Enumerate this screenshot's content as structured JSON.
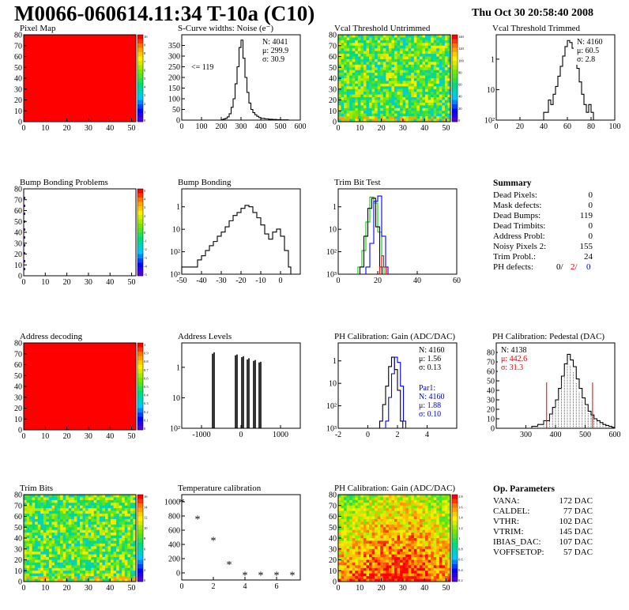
{
  "header": {
    "title": "M0066-060614.11:34 T-10a (C10)",
    "date": "Thu Oct 30 20:58:40 2008"
  },
  "chart_data": [
    {
      "id": "pixel-map",
      "type": "heatmap",
      "title": "Pixel Map",
      "xlim": [
        0,
        52
      ],
      "ylim": [
        0,
        80
      ],
      "xticks": [
        "0",
        "10",
        "20",
        "30",
        "40",
        "50"
      ],
      "yticks": [
        "0",
        "10",
        "20",
        "30",
        "40",
        "50",
        "60",
        "70",
        "80"
      ],
      "fill": "uniform",
      "fill_color": "#ff0000",
      "zmax": 10,
      "palette_ticks": [
        "10",
        "9",
        "8",
        "7",
        "6",
        "5",
        "4",
        "3",
        "2",
        "1",
        "0"
      ]
    },
    {
      "id": "scurve-noise",
      "type": "line",
      "title": "S-Curve widths: Noise (e⁻)",
      "xlim": [
        0,
        600
      ],
      "ylim": [
        0,
        400
      ],
      "xticks": [
        "0",
        "100",
        "200",
        "300",
        "400",
        "500",
        "600"
      ],
      "yticks": [
        "0",
        "50",
        "100",
        "150",
        "200",
        "250",
        "300",
        "350"
      ],
      "stats": {
        "N": "N: 4041",
        "mean": "μ: 299.9",
        "sigma": "σ: 30.9"
      },
      "annotation": "<= 119",
      "x": [
        200,
        210,
        220,
        230,
        240,
        250,
        260,
        270,
        280,
        290,
        300,
        310,
        320,
        330,
        340,
        350,
        360,
        370,
        380,
        390,
        400,
        420,
        440,
        460,
        480,
        500,
        520,
        540
      ],
      "values": [
        2,
        5,
        8,
        15,
        30,
        60,
        100,
        170,
        250,
        340,
        375,
        290,
        200,
        130,
        80,
        50,
        35,
        25,
        18,
        12,
        8,
        6,
        4,
        3,
        2,
        1,
        1,
        0
      ]
    },
    {
      "id": "vcal-untrimmed",
      "type": "heatmap",
      "title": "Vcal Threshold Untrimmed",
      "xlim": [
        0,
        52
      ],
      "ylim": [
        0,
        80
      ],
      "xticks": [
        "0",
        "10",
        "20",
        "30",
        "40",
        "50"
      ],
      "yticks": [
        "0",
        "10",
        "20",
        "30",
        "40",
        "50",
        "60",
        "70",
        "80"
      ],
      "fill": "noise",
      "palette_ticks": [
        "140",
        "120",
        "100",
        "80",
        "60",
        "40",
        "20",
        "0"
      ]
    },
    {
      "id": "vcal-trimmed",
      "type": "line",
      "title": "Vcal Threshold Trimmed",
      "xlim": [
        0,
        100
      ],
      "ylim": [
        0.5,
        1000
      ],
      "yscale": "log",
      "xticks": [
        "0",
        "20",
        "40",
        "60",
        "80",
        "100"
      ],
      "yticks": [
        "10²",
        "10",
        "1"
      ],
      "stats": {
        "N": "N: 4160",
        "mean": "μ: 60.5",
        "sigma": "σ:  2.8"
      },
      "x": [
        40,
        42,
        44,
        46,
        48,
        50,
        52,
        54,
        56,
        58,
        60,
        62,
        64,
        66,
        68,
        70,
        72,
        74,
        76,
        78,
        80
      ],
      "values": [
        1,
        1,
        3,
        2,
        5,
        10,
        25,
        60,
        150,
        350,
        600,
        500,
        300,
        120,
        50,
        15,
        5,
        2,
        1,
        2,
        1
      ]
    },
    {
      "id": "bump-map",
      "type": "heatmap",
      "title": "Bump Bonding Problems",
      "xlim": [
        0,
        52
      ],
      "ylim": [
        0,
        80
      ],
      "xticks": [
        "0",
        "10",
        "20",
        "30",
        "40",
        "50"
      ],
      "yticks": [
        "0",
        "10",
        "20",
        "30",
        "40",
        "50",
        "60",
        "70",
        "80"
      ],
      "fill": "empty",
      "palette_ticks": [
        "5",
        "4",
        "3",
        "2",
        "1",
        "0",
        "-1",
        "-2",
        "-3",
        "-4",
        "-5"
      ]
    },
    {
      "id": "bump-bonding",
      "type": "line",
      "title": "Bump Bonding",
      "xlim": [
        -50,
        10
      ],
      "ylim": [
        0.5,
        2000
      ],
      "yscale": "log",
      "xticks": [
        "-50",
        "-40",
        "-30",
        "-20",
        "-10",
        "0"
      ],
      "yticks": [
        "10³",
        "10²",
        "10",
        "1"
      ],
      "x": [
        -50,
        -45,
        -42,
        -40,
        -38,
        -36,
        -34,
        -32,
        -30,
        -28,
        -26,
        -24,
        -22,
        -20,
        -18,
        -16,
        -14,
        -12,
        -10,
        -8,
        -6,
        -4,
        -2,
        0,
        2,
        4
      ],
      "values": [
        1,
        1,
        2,
        3,
        5,
        8,
        12,
        20,
        30,
        50,
        90,
        150,
        200,
        300,
        400,
        350,
        200,
        120,
        60,
        25,
        15,
        30,
        40,
        20,
        5,
        1
      ]
    },
    {
      "id": "trim-bit-test",
      "type": "line",
      "title": "Trim Bit Test",
      "xlim": [
        0,
        60
      ],
      "ylim": [
        0.5,
        2000
      ],
      "yscale": "log",
      "xticks": [
        "0",
        "20",
        "40",
        "60"
      ],
      "yticks": [
        "10³",
        "10²",
        "10",
        "1"
      ],
      "series": [
        {
          "color": "#00cc00",
          "x": [
            10,
            12,
            14,
            16,
            18,
            20,
            22
          ],
          "values": [
            1,
            5,
            80,
            900,
            500,
            30,
            1
          ]
        },
        {
          "color": "#0000ff",
          "x": [
            14,
            16,
            18,
            20,
            22,
            24
          ],
          "values": [
            1,
            10,
            600,
            1000,
            20,
            1
          ]
        },
        {
          "color": "#000000",
          "x": [
            11,
            13,
            15,
            17,
            19,
            21
          ],
          "values": [
            1,
            20,
            300,
            800,
            50,
            1
          ]
        },
        {
          "color": "#ff0000",
          "x": [
            21,
            22,
            23
          ],
          "values": [
            1,
            3,
            1
          ]
        }
      ]
    },
    {
      "id": "summary",
      "type": "table",
      "title": "Summary",
      "rows": [
        {
          "label": "Dead Pixels:",
          "value": "0"
        },
        {
          "label": "Mask defects:",
          "value": "0"
        },
        {
          "label": "Dead Bumps:",
          "value": "119"
        },
        {
          "label": "Dead Trimbits:",
          "value": "0"
        },
        {
          "label": "Address Probl:",
          "value": "0"
        },
        {
          "label": "Noisy Pixels 2:",
          "value": "155"
        },
        {
          "label": "Trim Probl.:",
          "value": "24"
        }
      ],
      "ph_defects": {
        "label": "PH defects:",
        "v1": "0/",
        "v2": "2/",
        "v3": "0"
      }
    },
    {
      "id": "address-decoding",
      "type": "heatmap",
      "title": "Address decoding",
      "xlim": [
        0,
        52
      ],
      "ylim": [
        0,
        80
      ],
      "xticks": [
        "0",
        "10",
        "20",
        "30",
        "40",
        "50"
      ],
      "yticks": [
        "0",
        "10",
        "20",
        "30",
        "40",
        "50",
        "60",
        "70",
        "80"
      ],
      "fill": "uniform",
      "fill_color": "#ff0000",
      "palette_ticks": [
        "1",
        "0.9",
        "0.8",
        "0.7",
        "0.6",
        "0.5",
        "0.4",
        "0.3",
        "0.2",
        "0.1",
        "0"
      ]
    },
    {
      "id": "address-levels",
      "type": "bar",
      "title": "Address Levels",
      "xlim": [
        -1500,
        1500
      ],
      "ylim": [
        0.5,
        2000
      ],
      "yscale": "log",
      "xticks": [
        "-1000",
        "0",
        "1000"
      ],
      "yticks": [
        "10²",
        "10",
        "1"
      ],
      "x": [
        -720,
        -680,
        -140,
        -100,
        20,
        60,
        160,
        200,
        320,
        360,
        460,
        500
      ],
      "values": [
        700,
        800,
        600,
        650,
        500,
        550,
        400,
        450,
        350,
        380,
        300,
        320
      ]
    },
    {
      "id": "ph-gain",
      "type": "line",
      "title": "PH Calibration: Gain (ADC/DAC)",
      "xlim": [
        -2,
        6
      ],
      "ylim": [
        0.5,
        2000
      ],
      "yscale": "log",
      "xticks": [
        "-2",
        "0",
        "2",
        "4"
      ],
      "yticks": [
        "10³",
        "10²",
        "10",
        "1"
      ],
      "stats": {
        "N": "N: 4160",
        "mean": "μ: 1.56",
        "sigma": "σ: 0.13"
      },
      "fit_stats": {
        "name": "Par1:",
        "N": "N: 4160",
        "mean": "μ: 1.88",
        "sigma": "σ: 0.10"
      },
      "series": [
        {
          "color": "#000000",
          "x": [
            0.8,
            1.0,
            1.2,
            1.4,
            1.6,
            1.8,
            2.0,
            2.2
          ],
          "values": [
            1,
            5,
            30,
            200,
            500,
            150,
            20,
            1
          ]
        },
        {
          "color": "#0000ff",
          "x": [
            1.2,
            1.4,
            1.6,
            1.8,
            2.0,
            2.2,
            2.4
          ],
          "values": [
            1,
            10,
            100,
            500,
            300,
            30,
            1
          ]
        }
      ]
    },
    {
      "id": "ph-pedestal",
      "type": "line",
      "title": "PH Calibration: Pedestal (DAC)",
      "xlim": [
        200,
        600
      ],
      "ylim": [
        0,
        90
      ],
      "xticks": [
        "300",
        "400",
        "500",
        "600"
      ],
      "yticks": [
        "0",
        "10",
        "20",
        "30",
        "40",
        "50",
        "60",
        "70",
        "80"
      ],
      "stats": {
        "N": "N: 4138",
        "mean": "μ: 442.6",
        "sigma": "σ: 31.3"
      },
      "x": [
        320,
        340,
        360,
        380,
        390,
        400,
        410,
        420,
        430,
        440,
        450,
        460,
        470,
        480,
        490,
        500,
        510,
        520,
        530,
        540,
        550,
        560,
        570,
        580,
        590
      ],
      "values": [
        2,
        4,
        8,
        15,
        22,
        30,
        42,
        55,
        68,
        78,
        72,
        65,
        52,
        42,
        32,
        25,
        18,
        14,
        10,
        8,
        6,
        4,
        3,
        2,
        1
      ]
    },
    {
      "id": "trim-bits",
      "type": "heatmap",
      "title": "Trim Bits",
      "xlim": [
        0,
        52
      ],
      "ylim": [
        0,
        80
      ],
      "xticks": [
        "0",
        "10",
        "20",
        "30",
        "40",
        "50"
      ],
      "yticks": [
        "0",
        "10",
        "20",
        "30",
        "40",
        "50",
        "60",
        "70",
        "80"
      ],
      "fill": "noise",
      "palette_ticks": [
        "16",
        "14",
        "12",
        "10",
        "8",
        "6",
        "4",
        "2",
        "0"
      ]
    },
    {
      "id": "temperature-calibration",
      "type": "scatter",
      "title": "Temperature calibration",
      "xlim": [
        0,
        7.5
      ],
      "ylim": [
        -100,
        1100
      ],
      "xticks": [
        "0",
        "2",
        "4",
        "6"
      ],
      "yticks": [
        "0",
        "200",
        "400",
        "600",
        "800",
        "1000"
      ],
      "x": [
        0,
        1,
        2,
        3,
        4,
        5,
        6,
        7
      ],
      "values": [
        1000,
        760,
        460,
        120,
        -30,
        -30,
        -30,
        -30
      ]
    },
    {
      "id": "ph-gain-map",
      "type": "heatmap",
      "title": "PH Calibration: Gain (ADC/DAC)",
      "xlim": [
        0,
        52
      ],
      "ylim": [
        0,
        80
      ],
      "xticks": [
        "0",
        "10",
        "20",
        "30",
        "40",
        "50"
      ],
      "yticks": [
        "0",
        "10",
        "20",
        "30",
        "40",
        "50",
        "60",
        "70",
        "80"
      ],
      "fill": "gradient",
      "palette_ticks": [
        "1.8",
        "1.6",
        "1.4",
        "1.2",
        "1",
        "0.8",
        "0.6",
        "0.4",
        "0.2"
      ]
    },
    {
      "id": "op-parameters",
      "type": "table",
      "title": "Op. Parameters",
      "rows": [
        {
          "label": "VANA:",
          "value": "172 DAC"
        },
        {
          "label": "CALDEL:",
          "value": "77 DAC"
        },
        {
          "label": "VTHR:",
          "value": "102 DAC"
        },
        {
          "label": "VTRIM:",
          "value": "145 DAC"
        },
        {
          "label": "IBIAS_DAC:",
          "value": "107 DAC"
        },
        {
          "label": "VOFFSETOP:",
          "value": "57 DAC"
        }
      ]
    }
  ]
}
